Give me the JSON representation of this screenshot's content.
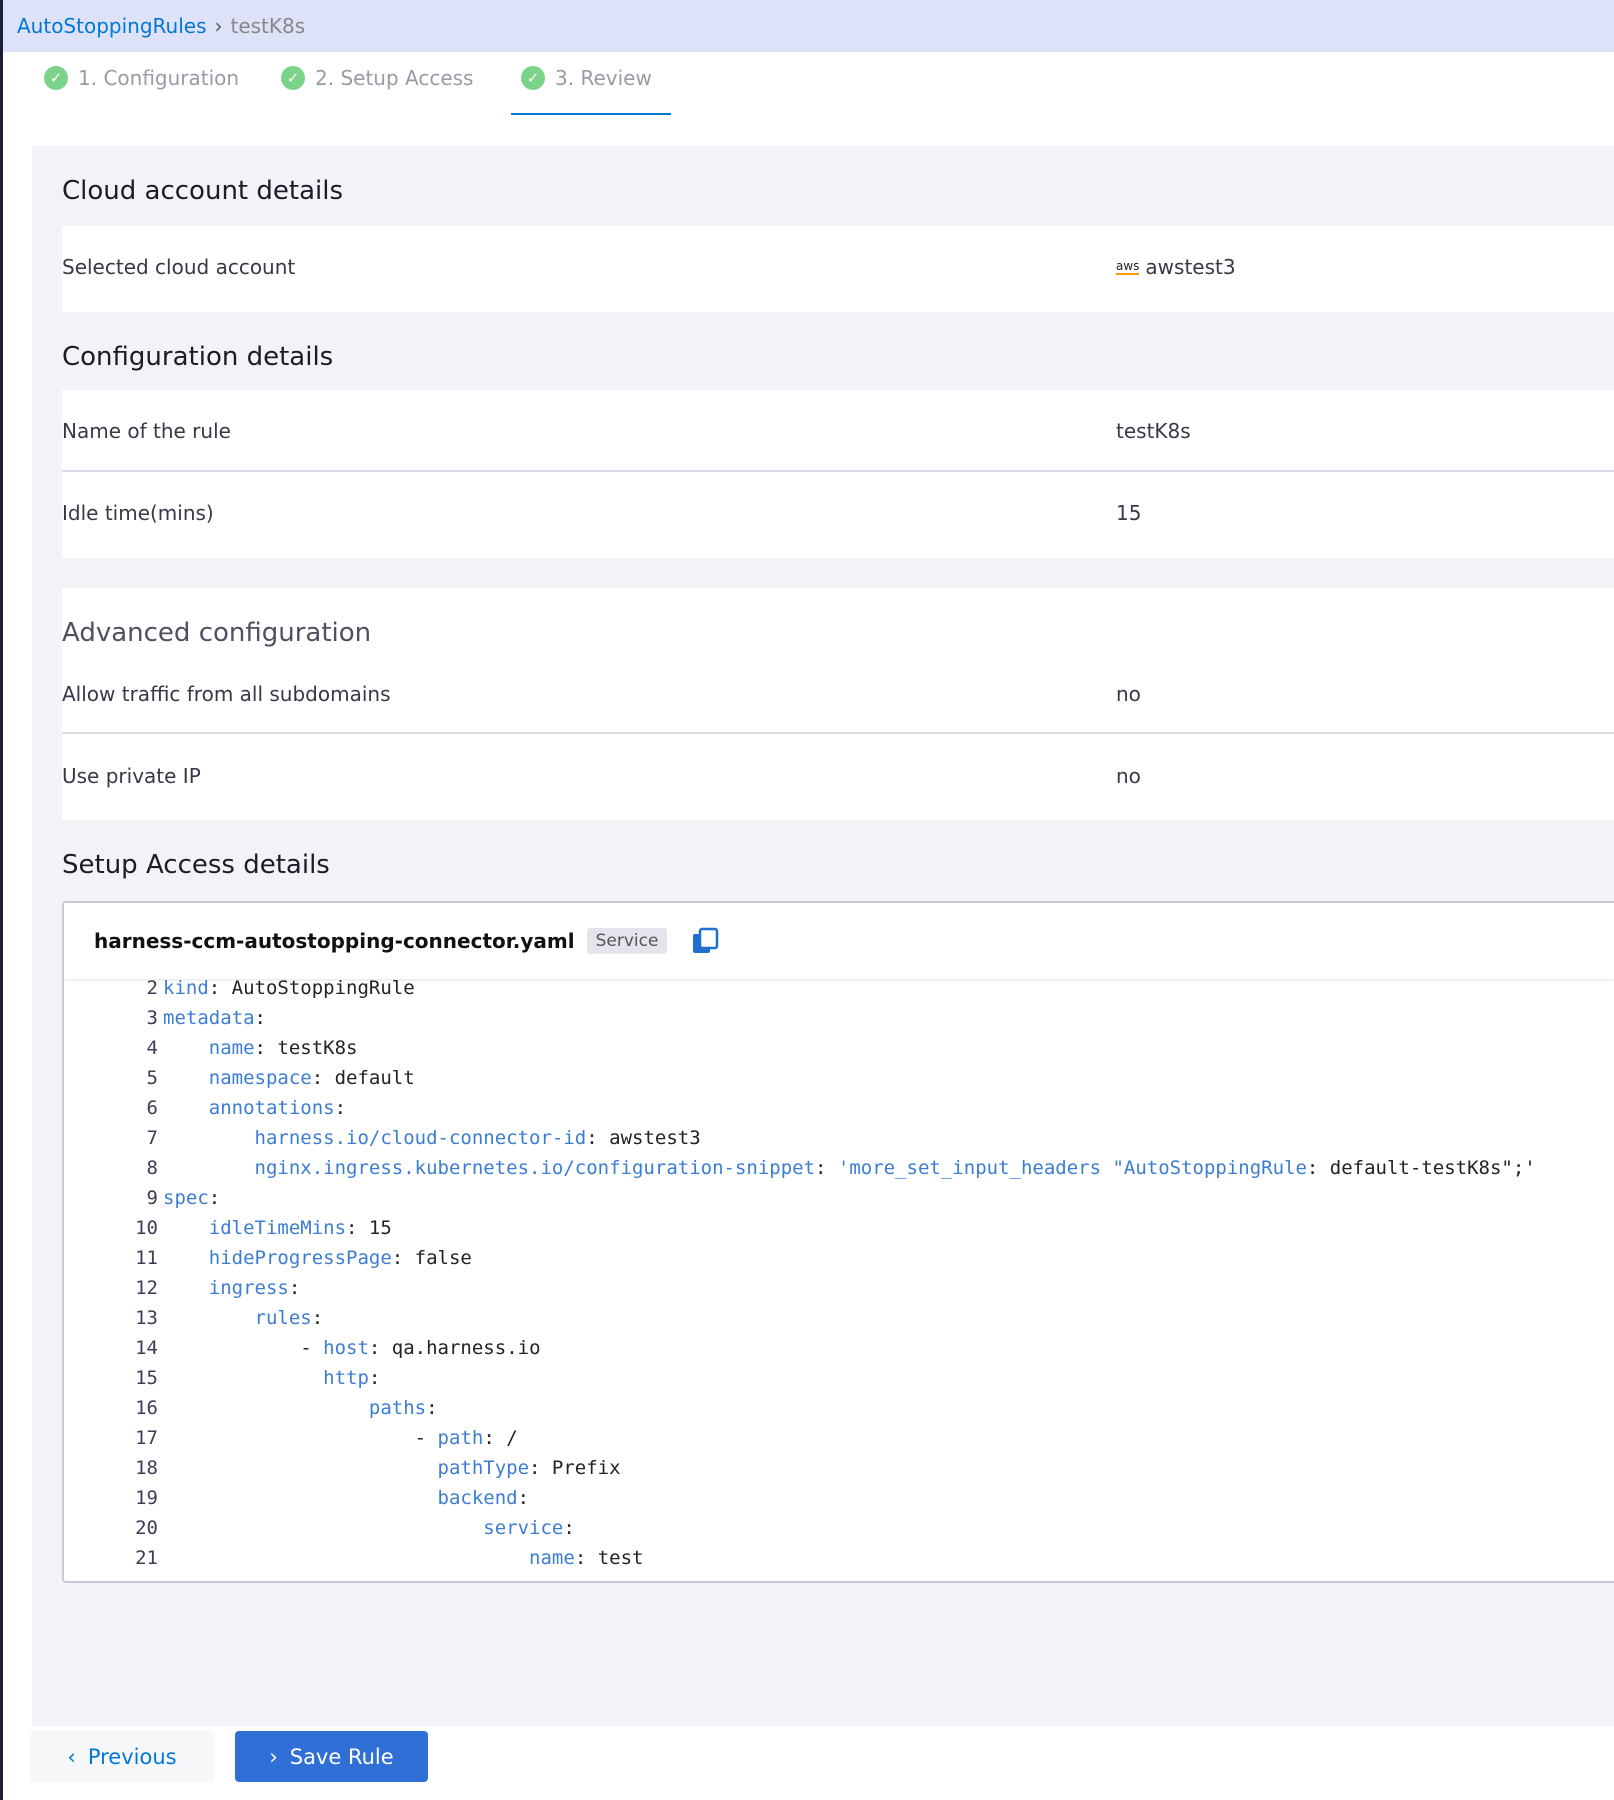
{
  "breadcrumb": {
    "parent": "AutoStoppingRules",
    "current": "testK8s"
  },
  "steps": [
    "1. Configuration",
    "2. Setup Access",
    "3. Review"
  ],
  "sections": {
    "cloud": {
      "title": "Cloud account details",
      "label": "Selected cloud account",
      "icon": "aws",
      "value": "awstest3"
    },
    "config": {
      "title": "Configuration details",
      "rows": [
        [
          "Name of the rule",
          "testK8s"
        ],
        [
          "Idle time(mins)",
          "15"
        ]
      ]
    },
    "advanced": {
      "title": "Advanced configuration",
      "rows": [
        [
          "Allow traffic from all subdomains",
          "no"
        ],
        [
          "Use private IP",
          "no"
        ]
      ]
    },
    "access": {
      "title": "Setup Access details",
      "file": "harness-ccm-autostopping-connector.yaml",
      "badge": "Service"
    }
  },
  "code": [
    {
      "num": "2",
      "parts": [
        {
          "text": "kind",
          "key": true
        },
        {
          "text": ": AutoStoppingRule"
        }
      ]
    },
    {
      "num": "3",
      "parts": [
        {
          "text": "metadata",
          "key": true
        },
        {
          "text": ":"
        }
      ]
    },
    {
      "num": "4",
      "parts": [
        {
          "text": "    name",
          "key": true
        },
        {
          "text": ": testK8s"
        }
      ]
    },
    {
      "num": "5",
      "parts": [
        {
          "text": "    namespace",
          "key": true
        },
        {
          "text": ": default"
        }
      ]
    },
    {
      "num": "6",
      "parts": [
        {
          "text": "    annotations",
          "key": true
        },
        {
          "text": ":"
        }
      ]
    },
    {
      "num": "7",
      "parts": [
        {
          "text": "        harness.io/cloud-connector-id",
          "key": true
        },
        {
          "text": ": awstest3"
        }
      ]
    },
    {
      "num": "8",
      "parts": [
        {
          "text": "        nginx.ingress.kubernetes.io/configuration-snippet",
          "key": true
        },
        {
          "text": ": "
        },
        {
          "text": "'more_set_input_headers \"AutoStoppingRule",
          "key": true
        },
        {
          "text": ": default-testK8s\";'"
        }
      ]
    },
    {
      "num": "9",
      "parts": [
        {
          "text": "spec",
          "key": true
        },
        {
          "text": ":"
        }
      ]
    },
    {
      "num": "10",
      "parts": [
        {
          "text": "    idleTimeMins",
          "key": true
        },
        {
          "text": ": 15"
        }
      ]
    },
    {
      "num": "11",
      "parts": [
        {
          "text": "    hideProgressPage",
          "key": true
        },
        {
          "text": ": false"
        }
      ]
    },
    {
      "num": "12",
      "parts": [
        {
          "text": "    ingress",
          "key": true
        },
        {
          "text": ":"
        }
      ]
    },
    {
      "num": "13",
      "parts": [
        {
          "text": "        rules",
          "key": true
        },
        {
          "text": ":"
        }
      ]
    },
    {
      "num": "14",
      "parts": [
        {
          "text": "            - "
        },
        {
          "text": "host",
          "key": true
        },
        {
          "text": ": qa.harness.io"
        }
      ]
    },
    {
      "num": "15",
      "parts": [
        {
          "text": "              http",
          "key": true
        },
        {
          "text": ":"
        }
      ]
    },
    {
      "num": "16",
      "parts": [
        {
          "text": "                  paths",
          "key": true
        },
        {
          "text": ":"
        }
      ]
    },
    {
      "num": "17",
      "parts": [
        {
          "text": "                      - "
        },
        {
          "text": "path",
          "key": true
        },
        {
          "text": ": /"
        }
      ]
    },
    {
      "num": "18",
      "parts": [
        {
          "text": "                        pathType",
          "key": true
        },
        {
          "text": ": Prefix"
        }
      ]
    },
    {
      "num": "19",
      "parts": [
        {
          "text": "                        backend",
          "key": true
        },
        {
          "text": ":"
        }
      ]
    },
    {
      "num": "20",
      "parts": [
        {
          "text": "                            service",
          "key": true
        },
        {
          "text": ":"
        }
      ]
    },
    {
      "num": "21",
      "parts": [
        {
          "text": "                                name",
          "key": true
        },
        {
          "text": ": test"
        }
      ]
    }
  ],
  "buttons": {
    "previous": "Previous",
    "save": "Save Rule"
  }
}
